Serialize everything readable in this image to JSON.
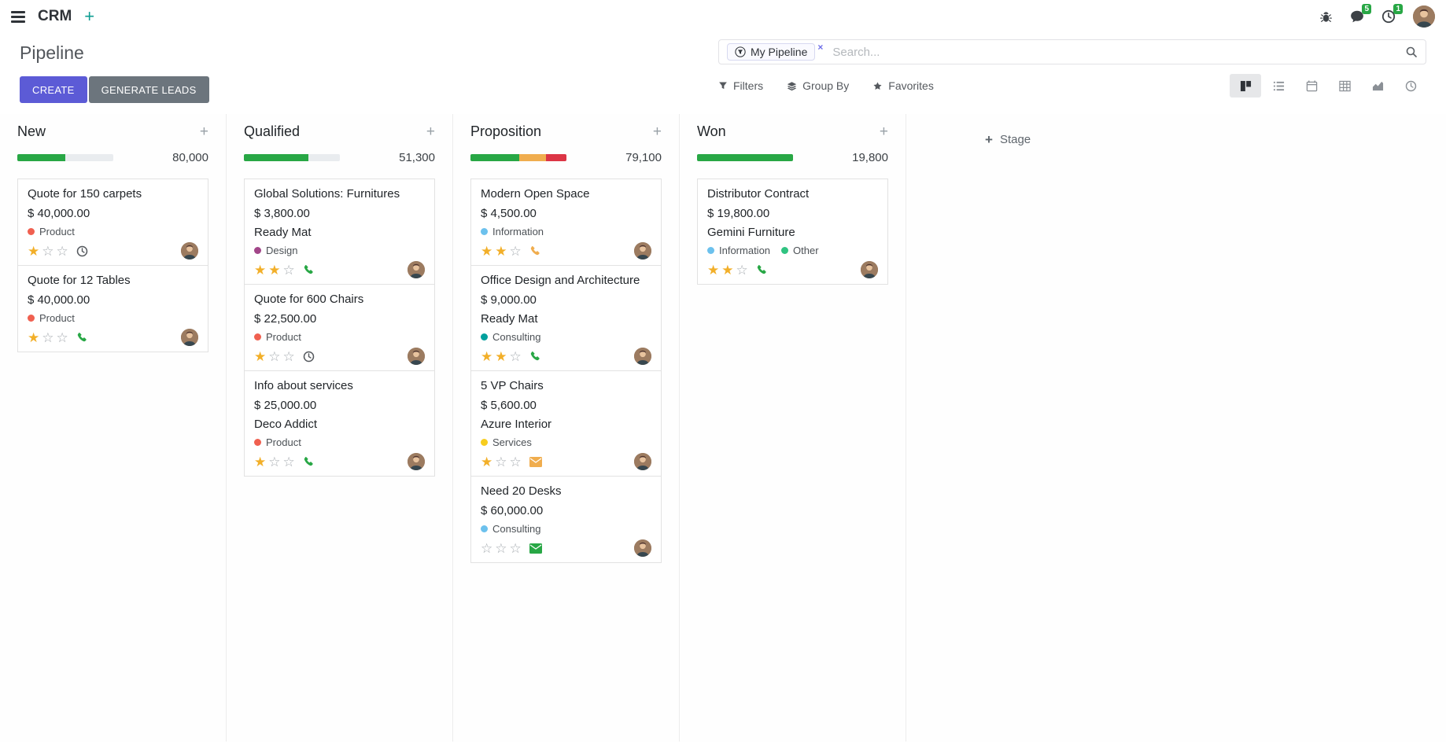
{
  "navbar": {
    "app_name": "CRM",
    "messages_badge": "5",
    "activities_badge": "1"
  },
  "control_panel": {
    "title": "Pipeline",
    "buttons": {
      "create": "CREATE",
      "generate_leads": "GENERATE LEADS"
    },
    "search": {
      "facet_label": "My Pipeline",
      "facet_remove": "×",
      "placeholder": "Search..."
    },
    "filter_menu": {
      "filters": "Filters",
      "group_by": "Group By",
      "favorites": "Favorites"
    }
  },
  "kanban": {
    "add_stage_label": "Stage",
    "columns": [
      {
        "name": "New",
        "counter": "80,000",
        "progress": [
          {
            "color": "#28a745",
            "pct": 50
          }
        ],
        "cards": [
          {
            "title": "Quote for 150 carpets",
            "amount": "$ 40,000.00",
            "partner": null,
            "tags": [
              {
                "label": "Product",
                "color": "#f06050"
              }
            ],
            "stars": 1,
            "activity": {
              "icon": "clock",
              "color": "#55595e"
            }
          },
          {
            "title": "Quote for 12 Tables",
            "amount": "$ 40,000.00",
            "partner": null,
            "tags": [
              {
                "label": "Product",
                "color": "#f06050"
              }
            ],
            "stars": 1,
            "activity": {
              "icon": "phone",
              "color": "#28a745"
            }
          }
        ]
      },
      {
        "name": "Qualified",
        "counter": "51,300",
        "progress": [
          {
            "color": "#28a745",
            "pct": 67
          }
        ],
        "cards": [
          {
            "title": "Global Solutions: Furnitures",
            "amount": "$ 3,800.00",
            "partner": "Ready Mat",
            "tags": [
              {
                "label": "Design",
                "color": "#a24689"
              }
            ],
            "stars": 2,
            "activity": {
              "icon": "phone",
              "color": "#28a745"
            }
          },
          {
            "title": "Quote for 600 Chairs",
            "amount": "$ 22,500.00",
            "partner": null,
            "tags": [
              {
                "label": "Product",
                "color": "#f06050"
              }
            ],
            "stars": 1,
            "activity": {
              "icon": "clock",
              "color": "#55595e"
            }
          },
          {
            "title": "Info about services",
            "amount": "$ 25,000.00",
            "partner": "Deco Addict",
            "tags": [
              {
                "label": "Product",
                "color": "#f06050"
              }
            ],
            "stars": 1,
            "activity": {
              "icon": "phone",
              "color": "#28a745"
            }
          }
        ]
      },
      {
        "name": "Proposition",
        "counter": "79,100",
        "progress": [
          {
            "color": "#28a745",
            "pct": 51
          },
          {
            "color": "#f0ad4e",
            "pct": 28
          },
          {
            "color": "#dc3545",
            "pct": 21
          }
        ],
        "cards": [
          {
            "title": "Modern Open Space",
            "amount": "$ 4,500.00",
            "partner": null,
            "tags": [
              {
                "label": "Information",
                "color": "#6cc1ed"
              }
            ],
            "stars": 2,
            "activity": {
              "icon": "phone",
              "color": "#f0ad4e"
            }
          },
          {
            "title": "Office Design and Architecture",
            "amount": "$ 9,000.00",
            "partner": "Ready Mat",
            "tags": [
              {
                "label": "Consulting",
                "color": "#00a09d"
              }
            ],
            "stars": 2,
            "activity": {
              "icon": "phone",
              "color": "#28a745"
            }
          },
          {
            "title": "5 VP Chairs",
            "amount": "$ 5,600.00",
            "partner": "Azure Interior",
            "tags": [
              {
                "label": "Services",
                "color": "#f7cd1f"
              }
            ],
            "stars": 1,
            "activity": {
              "icon": "envelope",
              "color": "#f0ad4e"
            }
          },
          {
            "title": "Need 20 Desks",
            "amount": "$ 60,000.00",
            "partner": null,
            "tags": [
              {
                "label": "Consulting",
                "color": "#6cc1ed"
              }
            ],
            "stars": 0,
            "activity": {
              "icon": "envelope",
              "color": "#28a745"
            }
          }
        ]
      },
      {
        "name": "Won",
        "counter": "19,800",
        "progress": [
          {
            "color": "#28a745",
            "pct": 100
          }
        ],
        "cards": [
          {
            "title": "Distributor Contract",
            "amount": "$ 19,800.00",
            "partner": "Gemini Furniture",
            "tags": [
              {
                "label": "Information",
                "color": "#6cc1ed"
              },
              {
                "label": "Other",
                "color": "#30c381"
              }
            ],
            "stars": 2,
            "activity": {
              "icon": "phone",
              "color": "#28a745"
            }
          }
        ]
      }
    ]
  }
}
